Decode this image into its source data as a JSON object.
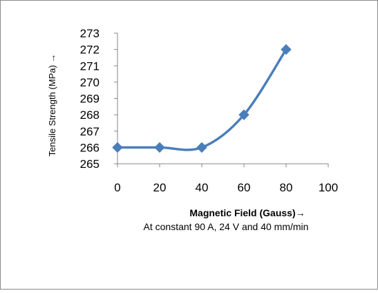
{
  "chart_data": {
    "type": "line",
    "x": [
      0,
      20,
      40,
      60,
      80
    ],
    "series": [
      {
        "values": [
          266,
          266,
          266,
          268,
          272
        ],
        "color": "#4A7EBB",
        "smoothed": true,
        "marker": "diamond"
      }
    ],
    "xlabel": "Magnetic Field  (Gauss)→",
    "ylabel": "Tensile Strength (MPa) →",
    "xlim": [
      0,
      100
    ],
    "ylim": [
      265,
      273
    ],
    "x_ticks": [
      0,
      20,
      40,
      60,
      80,
      100
    ],
    "y_ticks": [
      265,
      266,
      267,
      268,
      269,
      270,
      271,
      272,
      273
    ],
    "grid": false,
    "legend": "none",
    "annotations": [
      "At constant  90 A, 24 V and 40 mm/min"
    ]
  },
  "colors": {
    "axis": "#868686",
    "border": "#888888",
    "text": "#000000",
    "series": "#4A7EBB"
  }
}
